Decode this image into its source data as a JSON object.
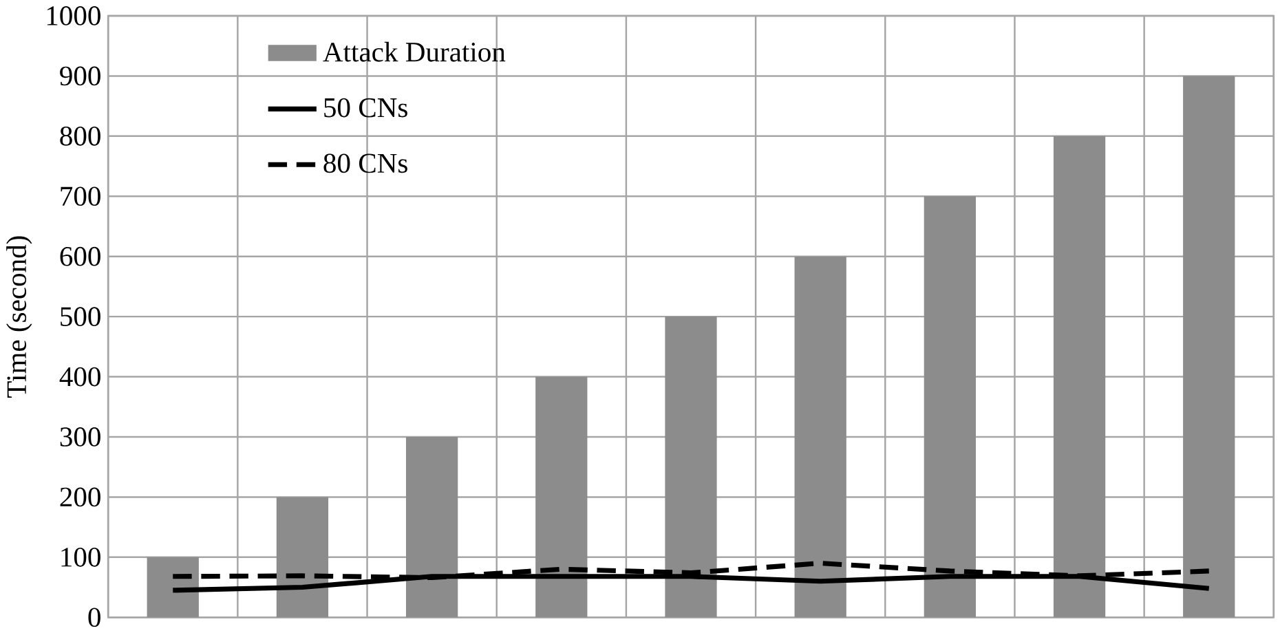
{
  "chart_data": {
    "type": "bar",
    "ylabel": "Time  (second)",
    "categories": [
      null,
      null,
      null,
      null,
      null,
      null,
      null,
      null,
      null
    ],
    "series": [
      {
        "name": "Attack Duration",
        "color": "#8c8c8c",
        "values": [
          100,
          200,
          300,
          400,
          500,
          600,
          700,
          800,
          900
        ]
      },
      {
        "name": "50 CNs",
        "type": "line",
        "color": "#000000",
        "line_style": "solid",
        "values": [
          45,
          50,
          68,
          68,
          68,
          60,
          68,
          68,
          48
        ]
      },
      {
        "name": "80 CNs",
        "type": "line",
        "color": "#000000",
        "line_style": "dashed",
        "values": [
          68,
          69,
          66,
          80,
          74,
          90,
          77,
          69,
          77
        ]
      }
    ],
    "ylim": [
      0,
      1000
    ],
    "yticks": [
      0,
      100,
      200,
      300,
      400,
      500,
      600,
      700,
      800,
      900,
      1000
    ],
    "grid": true,
    "legend": "top left",
    "marker": "none"
  }
}
